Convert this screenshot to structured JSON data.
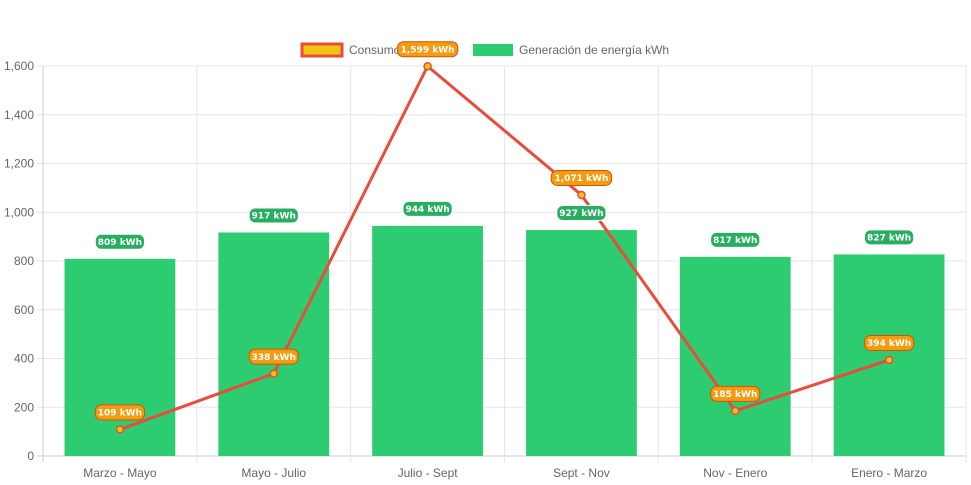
{
  "chart_data": {
    "type": "bar",
    "categories": [
      "Marzo - Mayo",
      "Mayo - Julio",
      "Julio - Sept",
      "Sept - Nov",
      "Nov - Enero",
      "Enero - Marzo"
    ],
    "ylim": [
      0,
      1600
    ],
    "yticks": [
      0,
      200,
      400,
      600,
      800,
      1000,
      1200,
      1400,
      1600
    ],
    "ytick_labels": [
      "0",
      "200",
      "400",
      "600",
      "800",
      "1,000",
      "1,200",
      "1,400",
      "1,600"
    ],
    "grid": true,
    "legend_position": "top",
    "series": [
      {
        "name": "Consumo kWh",
        "type": "line",
        "values": [
          109,
          338,
          1599,
          1071,
          185,
          394
        ],
        "labels": [
          "109 kWh",
          "338 kWh",
          "1,599 kWh",
          "1,071 kWh",
          "185 kWh",
          "394 kWh"
        ],
        "line_color": "#e74c3c",
        "fill_color": "#f1c40f",
        "label_color": "#f39c12"
      },
      {
        "name": "Generación de energía kWh",
        "type": "bar",
        "values": [
          809,
          917,
          944,
          927,
          817,
          827
        ],
        "labels": [
          "809 kWh",
          "917 kWh",
          "944 kWh",
          "927 kWh",
          "817 kWh",
          "827 kWh"
        ],
        "color": "#2ecc71",
        "label_color": "#27ae60"
      }
    ]
  }
}
